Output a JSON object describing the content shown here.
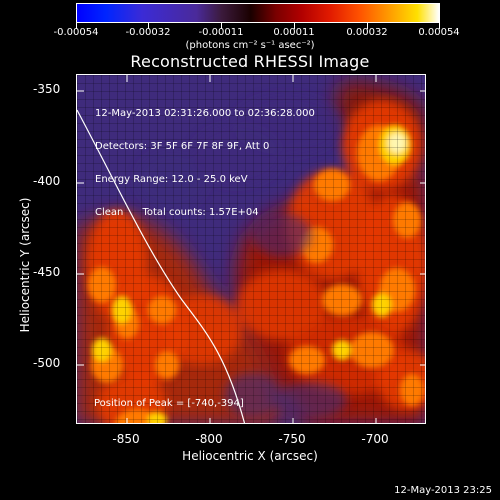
{
  "colorbar": {
    "labels": [
      "-0.00054",
      "-0.00032",
      "-0.00011",
      "0.00011",
      "0.00032",
      "0.00054"
    ],
    "units": "(photons cm⁻² s⁻¹ asec⁻²)"
  },
  "title": "Reconstructed RHESSI Image",
  "info": {
    "line1": "12-May-2013 02:31:26.000 to 02:36:28.000",
    "line2": "Detectors: 3F 5F 6F 7F 8F 9F, Att 0",
    "line3": "Energy Range: 12.0 - 25.0 keV",
    "line4": "Clean      Total counts: 1.57E+04"
  },
  "peak": "Position of Peak = [-740,-394]",
  "axes": {
    "xlabel": "Heliocentric X (arcsec)",
    "ylabel": "Heliocentric Y (arcsec)",
    "xticks": [
      "-850",
      "-800",
      "-750",
      "-700"
    ],
    "yticks": [
      "-350",
      "-400",
      "-450",
      "-500"
    ]
  },
  "footer_time": "12-May-2013 23:25"
}
